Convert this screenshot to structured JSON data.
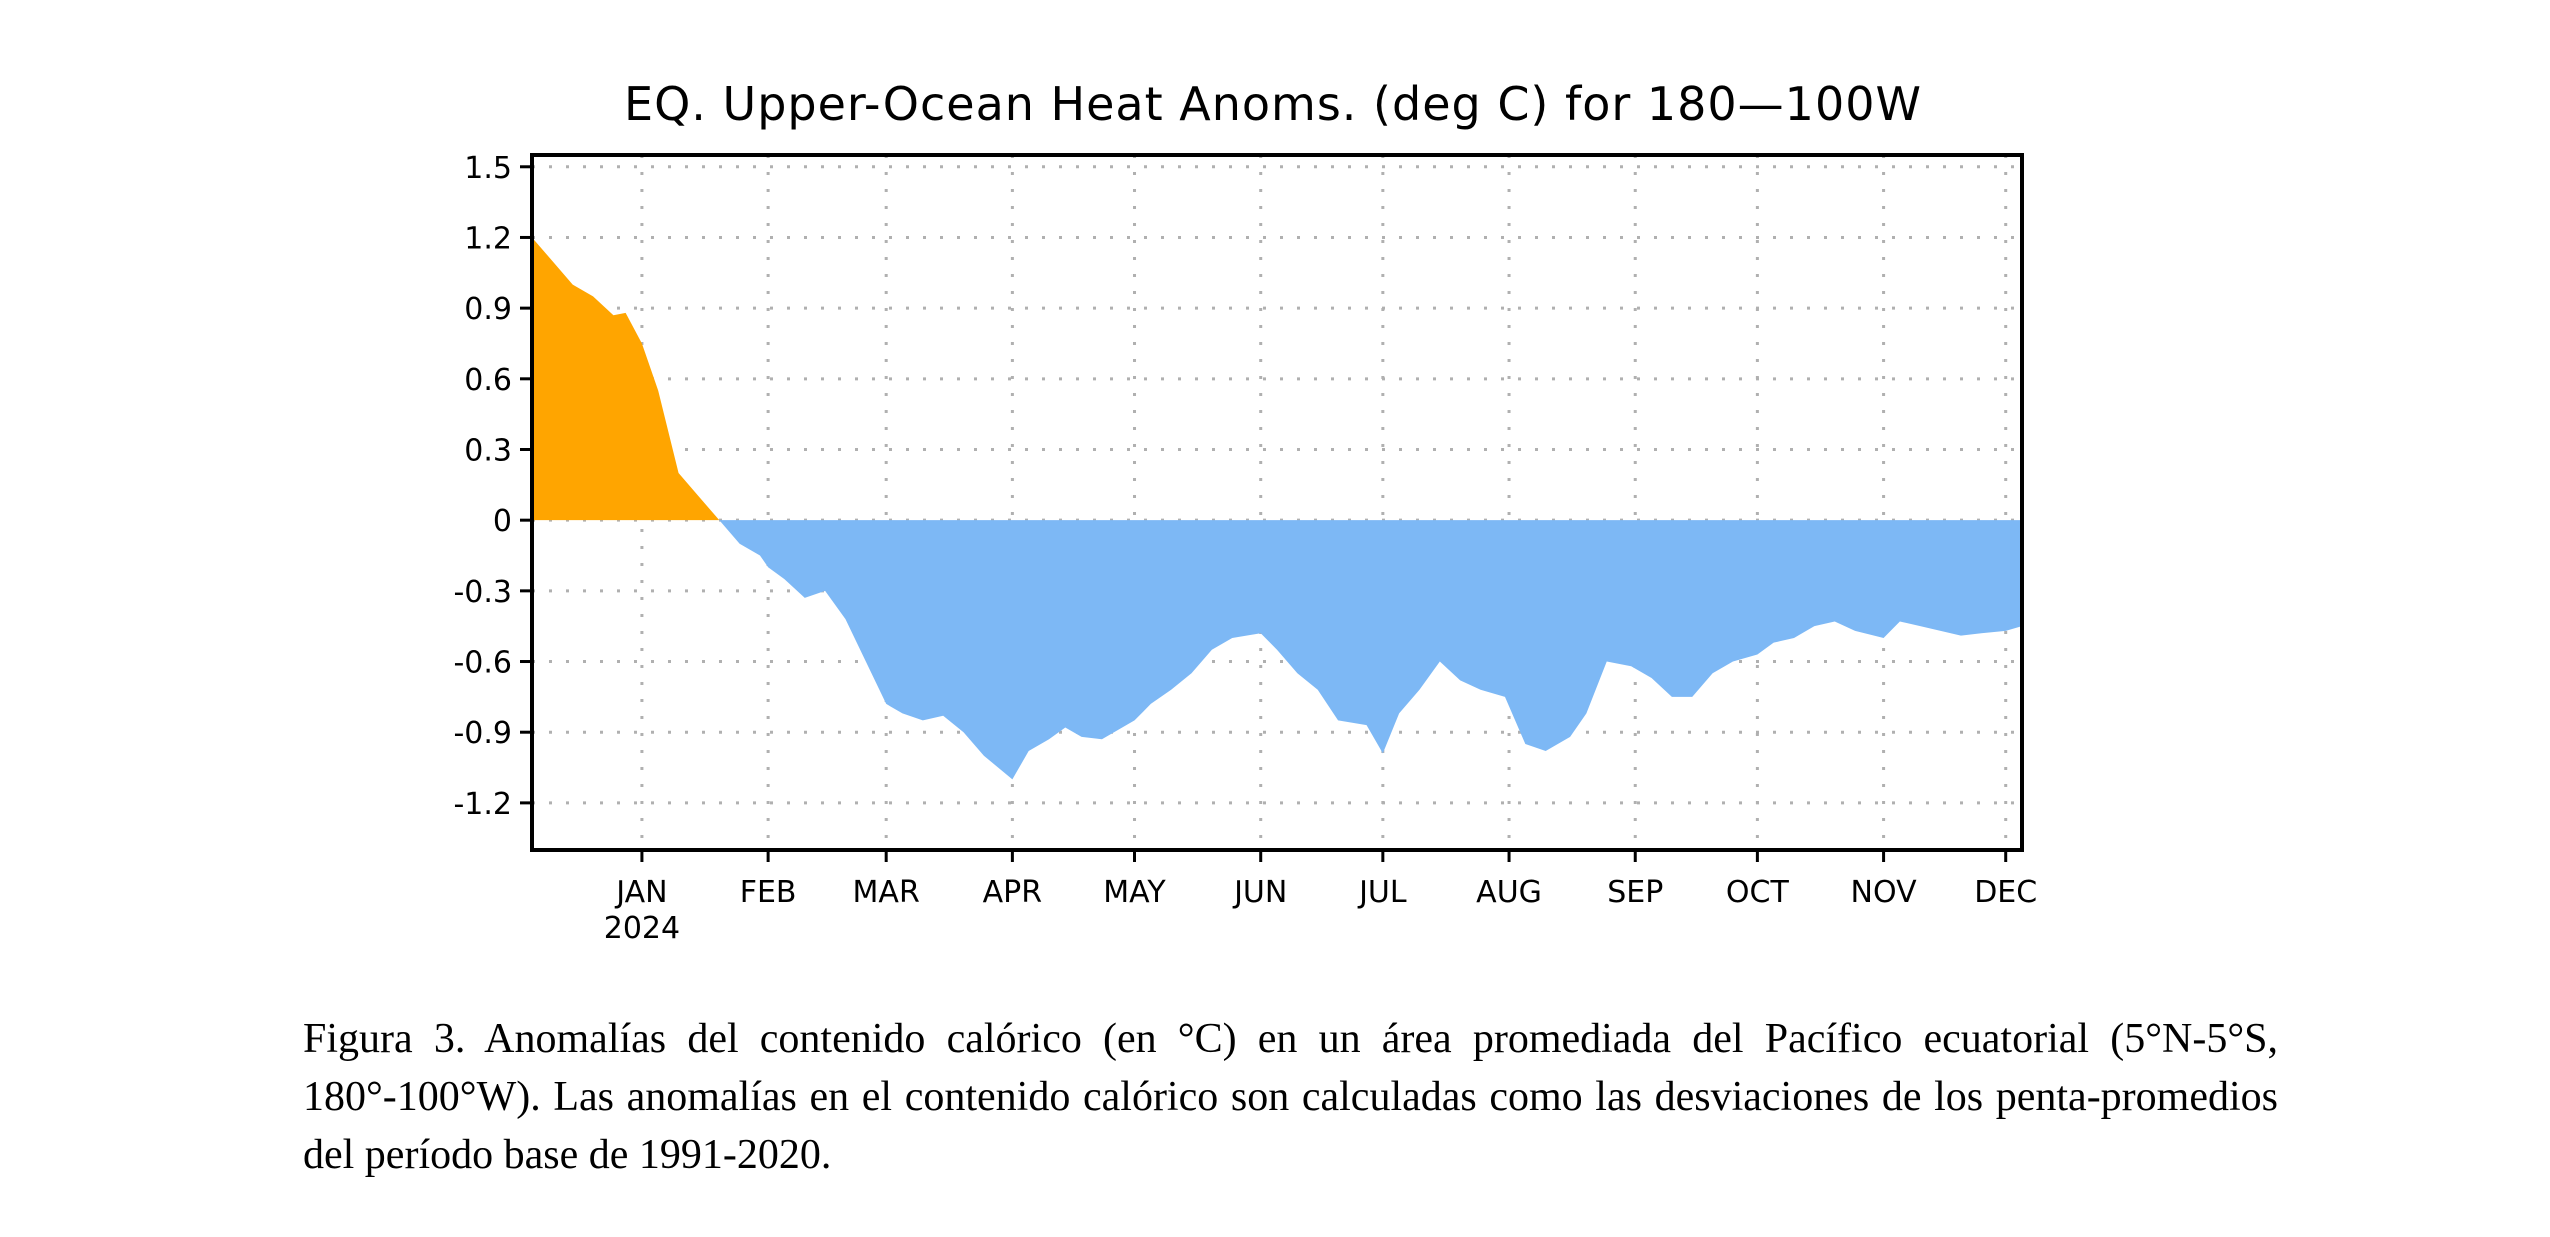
{
  "chart_data": {
    "type": "area",
    "title": "EQ. Upper-Ocean Heat Anoms. (deg C) for 180—100W",
    "xlabel": "",
    "ylabel": "",
    "x_range": [
      "2023-12-05",
      "2024-12-05"
    ],
    "ylim": [
      -1.4,
      1.55
    ],
    "y_ticks": [
      1.5,
      1.2,
      0.9,
      0.6,
      0.3,
      0,
      -0.3,
      -0.6,
      -0.9,
      -1.2
    ],
    "y_tick_labels": [
      "1.5",
      "1.2",
      "0.9",
      "0.6",
      "0.3",
      "0",
      "-0.3",
      "-0.6",
      "-0.9",
      "-1.2"
    ],
    "x_ticks": [
      {
        "label": "JAN",
        "date": "2024-01-01",
        "sublabel": "2024"
      },
      {
        "label": "FEB",
        "date": "2024-02-01"
      },
      {
        "label": "MAR",
        "date": "2024-03-01"
      },
      {
        "label": "APR",
        "date": "2024-04-01"
      },
      {
        "label": "MAY",
        "date": "2024-05-01"
      },
      {
        "label": "JUN",
        "date": "2024-06-01"
      },
      {
        "label": "JUL",
        "date": "2024-07-01"
      },
      {
        "label": "AUG",
        "date": "2024-08-01"
      },
      {
        "label": "SEP",
        "date": "2024-09-01"
      },
      {
        "label": "OCT",
        "date": "2024-10-01"
      },
      {
        "label": "NOV",
        "date": "2024-11-01"
      },
      {
        "label": "DEC",
        "date": "2024-12-01"
      }
    ],
    "grid": true,
    "positive_color": "#FFA500",
    "negative_color": "#7DB8F5",
    "series": [
      {
        "x": [
          "2023-12-05",
          "2023-12-10",
          "2023-12-15",
          "2023-12-20",
          "2023-12-25",
          "2023-12-28",
          "2024-01-01",
          "2024-01-05",
          "2024-01-10",
          "2024-01-15",
          "2024-01-20",
          "2024-01-25",
          "2024-01-30",
          "2024-02-01",
          "2024-02-05",
          "2024-02-10",
          "2024-02-15",
          "2024-02-20",
          "2024-02-25",
          "2024-03-01",
          "2024-03-05",
          "2024-03-10",
          "2024-03-15",
          "2024-03-20",
          "2024-03-25",
          "2024-04-01",
          "2024-04-05",
          "2024-04-10",
          "2024-04-14",
          "2024-04-18",
          "2024-04-23",
          "2024-05-01",
          "2024-05-05",
          "2024-05-10",
          "2024-05-15",
          "2024-05-20",
          "2024-05-25",
          "2024-06-01",
          "2024-06-05",
          "2024-06-10",
          "2024-06-15",
          "2024-06-20",
          "2024-06-27",
          "2024-07-01",
          "2024-07-05",
          "2024-07-10",
          "2024-07-15",
          "2024-07-20",
          "2024-07-25",
          "2024-07-31",
          "2024-08-05",
          "2024-08-10",
          "2024-08-16",
          "2024-08-20",
          "2024-08-25",
          "2024-08-31",
          "2024-09-05",
          "2024-09-10",
          "2024-09-15",
          "2024-09-20",
          "2024-09-25",
          "2024-10-01",
          "2024-10-05",
          "2024-10-10",
          "2024-10-15",
          "2024-10-20",
          "2024-10-25",
          "2024-11-01",
          "2024-11-05",
          "2024-11-10",
          "2024-11-15",
          "2024-11-20",
          "2024-11-25",
          "2024-12-01",
          "2024-12-05"
        ],
        "y": [
          1.2,
          1.1,
          1.0,
          0.95,
          0.87,
          0.88,
          0.75,
          0.55,
          0.2,
          0.1,
          0.0,
          -0.1,
          -0.15,
          -0.2,
          -0.25,
          -0.33,
          -0.3,
          -0.42,
          -0.6,
          -0.78,
          -0.82,
          -0.85,
          -0.83,
          -0.9,
          -1.0,
          -1.1,
          -0.98,
          -0.93,
          -0.88,
          -0.92,
          -0.93,
          -0.85,
          -0.78,
          -0.72,
          -0.65,
          -0.55,
          -0.5,
          -0.48,
          -0.55,
          -0.65,
          -0.72,
          -0.85,
          -0.87,
          -0.99,
          -0.82,
          -0.72,
          -0.6,
          -0.68,
          -0.72,
          -0.75,
          -0.95,
          -0.98,
          -0.92,
          -0.82,
          -0.6,
          -0.62,
          -0.67,
          -0.75,
          -0.75,
          -0.65,
          -0.6,
          -0.57,
          -0.52,
          -0.5,
          -0.45,
          -0.43,
          -0.47,
          -0.5,
          -0.43,
          -0.45,
          -0.47,
          -0.49,
          -0.48,
          -0.47,
          -0.45
        ]
      }
    ]
  },
  "caption": "Figura 3. Anomalías del contenido calórico (en °C) en un área promediada del Pacífico ecuatorial (5°N-5°S, 180°-100°W). Las anomalías en el contenido calórico son calculadas como las desviaciones de los penta-promedios del período base de 1991-2020."
}
